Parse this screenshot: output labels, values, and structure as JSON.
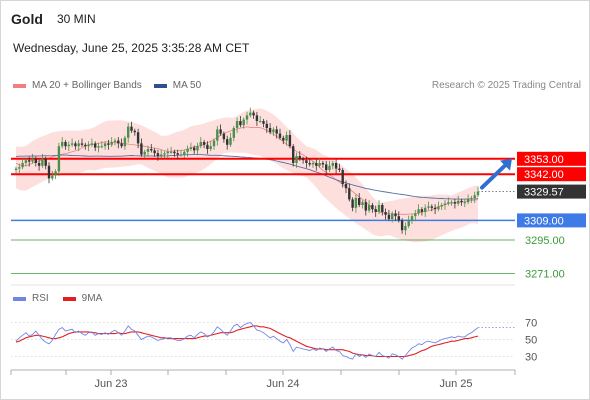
{
  "header": {
    "symbol": "Gold",
    "timeframe": "30 MIN",
    "datetime": "Wednesday, June 25, 2025 3:35:28 AM CET"
  },
  "legend": {
    "bollinger_label": "MA 20 + Bollinger Bands",
    "ma50_label": "MA 50",
    "credit": "Research © 2025 Trading Central"
  },
  "rsi_legend": {
    "rsi_label": "RSI",
    "ma_label": "9MA"
  },
  "colors": {
    "bollinger": "#f08080",
    "band_fill": "#fde0de",
    "ma50": "#5a6ea8",
    "resistance": "#ff0000",
    "pivot": "#3f7be6",
    "support": "#3a9a3a",
    "current_price_bg": "#333333",
    "arrow": "#2f6fd0",
    "rsi": "#6f86e6",
    "rsi_ma": "#e22020",
    "candle_up": "#4a8f4a",
    "candle_down": "#333333"
  },
  "chart_data": {
    "type": "candlestick",
    "x_tick_labels": [
      "Jun 23",
      "Jun 24",
      "Jun 25"
    ],
    "ylim": [
      3265,
      3395
    ],
    "levels": [
      {
        "label": "3353.00",
        "value": 3353.0,
        "kind": "resistance"
      },
      {
        "label": "3342.00",
        "value": 3342.0,
        "kind": "resistance"
      },
      {
        "label": "3329.57",
        "value": 3329.57,
        "kind": "last_price"
      },
      {
        "label": "3309.00",
        "value": 3309.0,
        "kind": "pivot"
      },
      {
        "label": "3295.00",
        "value": 3295.0,
        "kind": "support"
      },
      {
        "label": "3271.00",
        "value": 3271.0,
        "kind": "support"
      }
    ],
    "close": [
      3346,
      3347,
      3350,
      3352,
      3351,
      3353,
      3350,
      3348,
      3353,
      3348,
      3339,
      3341,
      3344,
      3362,
      3365,
      3362,
      3363,
      3364,
      3362,
      3364,
      3363,
      3362,
      3363,
      3364,
      3361,
      3362,
      3362,
      3364,
      3363,
      3365,
      3366,
      3364,
      3362,
      3368,
      3376,
      3373,
      3372,
      3364,
      3356,
      3358,
      3360,
      3359,
      3357,
      3355,
      3356,
      3357,
      3358,
      3358,
      3357,
      3356,
      3356,
      3358,
      3360,
      3361,
      3359,
      3362,
      3365,
      3363,
      3360,
      3362,
      3366,
      3374,
      3371,
      3367,
      3363,
      3368,
      3375,
      3380,
      3377,
      3381,
      3384,
      3386,
      3384,
      3380,
      3380,
      3378,
      3375,
      3372,
      3374,
      3371,
      3368,
      3366,
      3370,
      3362,
      3350,
      3355,
      3353,
      3352,
      3350,
      3349,
      3350,
      3348,
      3350,
      3349,
      3345,
      3348,
      3350,
      3346,
      3345,
      3335,
      3332,
      3324,
      3318,
      3325,
      3320,
      3322,
      3316,
      3320,
      3317,
      3315,
      3320,
      3315,
      3313,
      3310,
      3314,
      3312,
      3309,
      3302,
      3305,
      3309,
      3312,
      3314,
      3317,
      3315,
      3318,
      3319,
      3318,
      3317,
      3319,
      3320,
      3321,
      3322,
      3322,
      3321,
      3323,
      3322,
      3322,
      3324,
      3325,
      3327,
      3329.57
    ],
    "ma20_bollinger": {
      "mid_first": 3350,
      "mid_last": 3318,
      "upper_first": 3362,
      "upper_last": 3323,
      "lower_first": 3338,
      "lower_last": 3302
    },
    "ma50": {
      "first": 3355,
      "last": 3330
    },
    "rsi_axis": {
      "ticks": [
        70,
        50,
        30
      ],
      "range": [
        20,
        80
      ]
    },
    "rsi": [
      48,
      52,
      55,
      58,
      54,
      56,
      60,
      55,
      50,
      47,
      45,
      49,
      56,
      62,
      64,
      60,
      61,
      62,
      58,
      60,
      57,
      55,
      58,
      59,
      55,
      57,
      56,
      58,
      56,
      59,
      61,
      58,
      55,
      60,
      66,
      62,
      60,
      55,
      50,
      52,
      54,
      53,
      51,
      49,
      50,
      51,
      52,
      52,
      50,
      49,
      49,
      51,
      54,
      55,
      52,
      56,
      59,
      57,
      53,
      55,
      59,
      65,
      62,
      58,
      55,
      60,
      66,
      68,
      64,
      67,
      69,
      70,
      66,
      61,
      60,
      58,
      55,
      52,
      54,
      51,
      48,
      46,
      50,
      44,
      36,
      41,
      40,
      39,
      38,
      37,
      39,
      37,
      40,
      39,
      36,
      39,
      41,
      37,
      36,
      31,
      30,
      28,
      27,
      33,
      30,
      32,
      29,
      33,
      31,
      30,
      35,
      31,
      30,
      28,
      33,
      32,
      30,
      27,
      31,
      36,
      40,
      42,
      45,
      44,
      47,
      48,
      47,
      46,
      48,
      50,
      51,
      52,
      53,
      52,
      54,
      53,
      53,
      56,
      58,
      61,
      64
    ],
    "rsi_9ma": [
      47,
      48,
      50,
      52,
      53,
      54,
      55,
      55,
      54,
      53,
      52,
      51,
      51,
      52,
      53,
      55,
      57,
      58,
      59,
      59,
      59,
      59,
      59,
      58,
      58,
      57,
      57,
      57,
      57,
      57,
      57,
      58,
      57,
      57,
      58,
      59,
      59,
      59,
      58,
      57,
      56,
      55,
      54,
      53,
      52,
      52,
      51,
      51,
      51,
      51,
      51,
      51,
      51,
      51,
      51,
      52,
      53,
      54,
      54,
      55,
      56,
      57,
      58,
      58,
      58,
      58,
      59,
      61,
      62,
      63,
      64,
      65,
      66,
      66,
      65,
      65,
      64,
      63,
      61,
      59,
      57,
      55,
      53,
      52,
      50,
      48,
      46,
      44,
      42,
      41,
      40,
      39,
      39,
      39,
      38,
      38,
      38,
      38,
      38,
      38,
      37,
      36,
      34,
      33,
      32,
      32,
      31,
      31,
      31,
      30,
      30,
      30,
      30,
      30,
      30,
      30,
      30,
      30,
      30,
      31,
      32,
      33,
      35,
      37,
      38,
      40,
      42,
      43,
      44,
      45,
      46,
      47,
      48,
      48,
      49,
      50,
      51,
      51,
      52,
      53,
      54
    ]
  }
}
